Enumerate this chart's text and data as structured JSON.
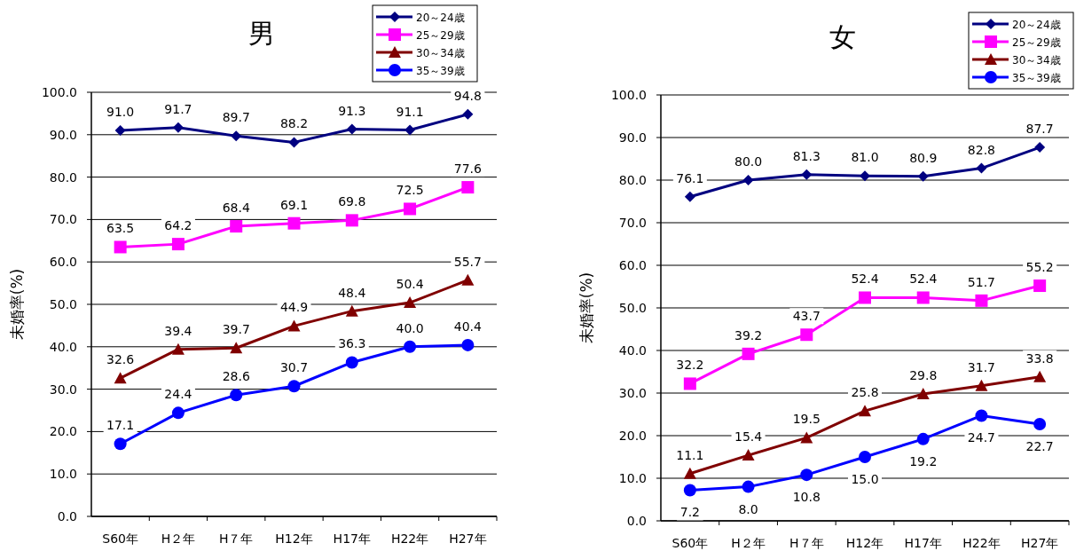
{
  "chart_data": [
    {
      "type": "line",
      "title": "男",
      "ylabel": "未婚率(%)",
      "categories": [
        "S60年",
        "H２年",
        "H７年",
        "H12年",
        "H17年",
        "H22年",
        "H27年"
      ],
      "ylim": [
        0,
        100
      ],
      "yticks": [
        {
          "value": 0,
          "label": "0.0"
        },
        {
          "value": 10,
          "label": "10.0"
        },
        {
          "value": 20,
          "label": "20.0"
        },
        {
          "value": 30,
          "label": "30.0"
        },
        {
          "value": 40,
          "label": "40.0"
        },
        {
          "value": 50,
          "label": "50.0"
        },
        {
          "value": 60,
          "label": "60.0"
        },
        {
          "value": 70,
          "label": "70.0"
        },
        {
          "value": 80,
          "label": "80.0"
        },
        {
          "value": 90,
          "label": "90.0"
        },
        {
          "value": 100,
          "label": "100.0"
        }
      ],
      "grid": "y",
      "legend": "top right",
      "line_style": "solid",
      "series": [
        {
          "name": "20～24歳",
          "color": "#000080",
          "marker": "diamond",
          "values": [
            91.0,
            91.7,
            89.7,
            88.2,
            91.3,
            91.1,
            94.8
          ],
          "value_labels": [
            "91.0",
            "91.7",
            "89.7",
            "88.2",
            "91.3",
            "91.1",
            "94.8"
          ]
        },
        {
          "name": "25～29歳",
          "color": "#ff00ff",
          "marker": "square",
          "values": [
            63.5,
            64.2,
            68.4,
            69.1,
            69.8,
            72.5,
            77.6
          ],
          "value_labels": [
            "63.5",
            "64.2",
            "68.4",
            "69.1",
            "69.8",
            "72.5",
            "77.6"
          ]
        },
        {
          "name": "30～34歳",
          "color": "#800000",
          "marker": "triangle",
          "values": [
            32.6,
            39.4,
            39.7,
            44.9,
            48.4,
            50.4,
            55.7
          ],
          "value_labels": [
            "32.6",
            "39.4",
            "39.7",
            "44.9",
            "48.4",
            "50.4",
            "55.7"
          ]
        },
        {
          "name": "35～39歳",
          "color": "#0000ff",
          "marker": "circle",
          "values": [
            17.1,
            24.4,
            28.6,
            30.7,
            36.3,
            40.0,
            40.4
          ],
          "value_labels": [
            "17.1",
            "24.4",
            "28.6",
            "30.7",
            "36.3",
            "40.0",
            "40.4"
          ]
        }
      ]
    },
    {
      "type": "line",
      "title": "女",
      "ylabel": "未婚率(%)",
      "categories": [
        "S60年",
        "H２年",
        "H７年",
        "H12年",
        "H17年",
        "H22年",
        "H27年"
      ],
      "ylim": [
        0,
        100
      ],
      "yticks": [
        {
          "value": 0,
          "label": "0.0"
        },
        {
          "value": 10,
          "label": "10.0"
        },
        {
          "value": 20,
          "label": "20.0"
        },
        {
          "value": 30,
          "label": "30.0"
        },
        {
          "value": 40,
          "label": "40.0"
        },
        {
          "value": 50,
          "label": "50.0"
        },
        {
          "value": 60,
          "label": "60.0"
        },
        {
          "value": 70,
          "label": "70.0"
        },
        {
          "value": 80,
          "label": "80.0"
        },
        {
          "value": 90,
          "label": "90.0"
        },
        {
          "value": 100,
          "label": "100.0"
        }
      ],
      "grid": "y",
      "legend": "top right",
      "line_style": "solid",
      "series": [
        {
          "name": "20～24歳",
          "color": "#000080",
          "marker": "diamond",
          "values": [
            76.1,
            80.0,
            81.3,
            81.0,
            80.9,
            82.8,
            87.7
          ],
          "value_labels": [
            "76.1",
            "80.0",
            "81.3",
            "81.0",
            "80.9",
            "82.8",
            "87.7"
          ]
        },
        {
          "name": "25～29歳",
          "color": "#ff00ff",
          "marker": "square",
          "values": [
            32.2,
            39.2,
            43.7,
            52.4,
            52.4,
            51.7,
            55.2
          ],
          "value_labels": [
            "32.2",
            "39.2",
            "43.7",
            "52.4",
            "52.4",
            "51.7",
            "55.2"
          ]
        },
        {
          "name": "30～34歳",
          "color": "#800000",
          "marker": "triangle",
          "values": [
            11.1,
            15.4,
            19.5,
            25.8,
            29.8,
            31.7,
            33.8
          ],
          "value_labels": [
            "11.1",
            "15.4",
            "19.5",
            "25.8",
            "29.8",
            "31.7",
            "33.8"
          ]
        },
        {
          "name": "35～39歳",
          "color": "#0000ff",
          "marker": "circle",
          "values": [
            7.2,
            8.0,
            10.8,
            15.0,
            19.2,
            24.7,
            22.7
          ],
          "value_labels": [
            "7.2",
            "8.0",
            "10.8",
            "15.0",
            "19.2",
            "24.7",
            "22.7"
          ]
        }
      ]
    }
  ]
}
